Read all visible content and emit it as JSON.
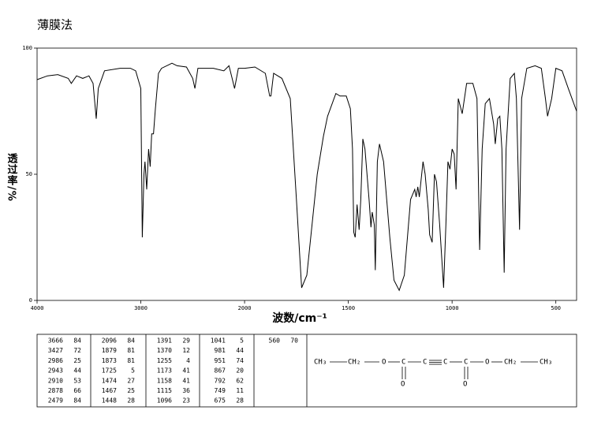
{
  "chart_data": {
    "type": "line",
    "title": "薄膜法",
    "xlabel": "波数/cm⁻¹",
    "ylabel": "透过率/%",
    "x_scale": "piecewise",
    "xlim": [
      4000,
      400
    ],
    "xticks": [
      4000,
      3000,
      2000,
      1500,
      1000,
      500
    ],
    "ylim": [
      0,
      100
    ],
    "yticks": [
      0,
      50,
      100
    ],
    "color": "#000000",
    "x": [
      4000,
      3900,
      3800,
      3700,
      3670,
      3620,
      3560,
      3500,
      3460,
      3430,
      3410,
      3350,
      3200,
      3100,
      3050,
      3000,
      2986,
      2970,
      2960,
      2943,
      2925,
      2910,
      2895,
      2878,
      2860,
      2830,
      2800,
      2700,
      2650,
      2560,
      2500,
      2479,
      2450,
      2300,
      2200,
      2150,
      2120,
      2096,
      2060,
      2000,
      1950,
      1900,
      1879,
      1873,
      1860,
      1820,
      1780,
      1750,
      1725,
      1700,
      1650,
      1620,
      1600,
      1560,
      1540,
      1510,
      1490,
      1480,
      1474,
      1467,
      1458,
      1448,
      1440,
      1430,
      1420,
      1400,
      1391,
      1385,
      1375,
      1370,
      1360,
      1350,
      1330,
      1300,
      1280,
      1255,
      1230,
      1200,
      1180,
      1173,
      1165,
      1158,
      1140,
      1130,
      1115,
      1108,
      1096,
      1085,
      1075,
      1060,
      1041,
      1030,
      1020,
      1010,
      1000,
      990,
      981,
      970,
      951,
      930,
      900,
      880,
      867,
      855,
      840,
      820,
      800,
      792,
      780,
      770,
      760,
      749,
      740,
      720,
      700,
      690,
      675,
      665,
      640,
      600,
      570,
      550,
      540,
      520,
      500,
      470,
      440,
      400
    ],
    "values": [
      87.5,
      89,
      89.5,
      88,
      86,
      89,
      88,
      89,
      86,
      72,
      84,
      91,
      92,
      92,
      91,
      84,
      25,
      50,
      55,
      44,
      60,
      53,
      66,
      66,
      76,
      90,
      92,
      94,
      93,
      92.5,
      88,
      84,
      92,
      92,
      91,
      93,
      88,
      84,
      92,
      92,
      92.5,
      90,
      81,
      81,
      90,
      88,
      80,
      40,
      5,
      10,
      50,
      65,
      73,
      82,
      81,
      81,
      76,
      60,
      27,
      25,
      38,
      28,
      40,
      64,
      60,
      40,
      29,
      35,
      30,
      12,
      55,
      62,
      55,
      25,
      8,
      4,
      10,
      40,
      44,
      41,
      45,
      41,
      55,
      50,
      36,
      26,
      23,
      50,
      47,
      30,
      5,
      30,
      55,
      52,
      60,
      58,
      44,
      80,
      74,
      86,
      86,
      80,
      20,
      60,
      78,
      80,
      70,
      62,
      72,
      73,
      60,
      11,
      60,
      88,
      90,
      80,
      28,
      80,
      92,
      93,
      92,
      80,
      73,
      80,
      92,
      91,
      84,
      75
    ]
  },
  "peak_table": {
    "columns": [
      [
        [
          "3666",
          "84"
        ],
        [
          "3427",
          "72"
        ],
        [
          "2986",
          "25"
        ],
        [
          "2943",
          "44"
        ],
        [
          "2910",
          "53"
        ],
        [
          "2878",
          "66"
        ],
        [
          "2479",
          "84"
        ]
      ],
      [
        [
          "2096",
          "84"
        ],
        [
          "1879",
          "81"
        ],
        [
          "1873",
          "81"
        ],
        [
          "1725",
          "5"
        ],
        [
          "1474",
          "27"
        ],
        [
          "1467",
          "25"
        ],
        [
          "1448",
          "28"
        ]
      ],
      [
        [
          "1391",
          "29"
        ],
        [
          "1370",
          "12"
        ],
        [
          "1255",
          "4"
        ],
        [
          "1173",
          "41"
        ],
        [
          "1158",
          "41"
        ],
        [
          "1115",
          "36"
        ],
        [
          "1096",
          "23"
        ]
      ],
      [
        [
          "1041",
          "5"
        ],
        [
          "981",
          "44"
        ],
        [
          "951",
          "74"
        ],
        [
          "867",
          "20"
        ],
        [
          "792",
          "62"
        ],
        [
          "749",
          "11"
        ],
        [
          "675",
          "28"
        ]
      ],
      [
        [
          "560",
          "70"
        ]
      ]
    ]
  },
  "structure": {
    "atoms": [
      "CH₃",
      "CH₂",
      "O",
      "C",
      "C",
      "C",
      "C",
      "O",
      "CH₂",
      "CH₃",
      "O",
      "O"
    ]
  }
}
